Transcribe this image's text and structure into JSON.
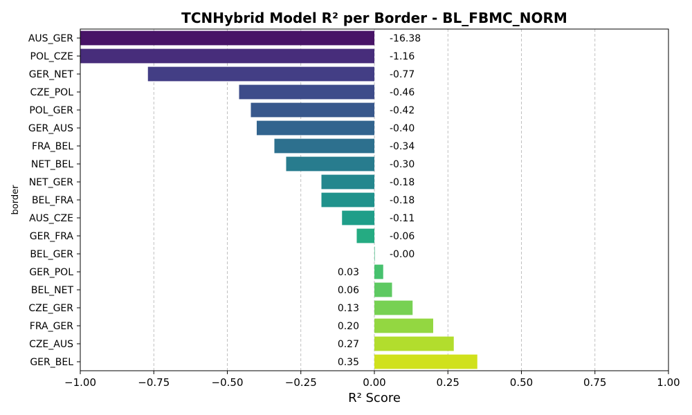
{
  "chart_data": {
    "type": "bar",
    "orientation": "horizontal",
    "title": "TCNHybrid Model R² per Border - BL_FBMC_NORM",
    "xlabel": "R² Score",
    "ylabel": "border",
    "xlim": [
      -1.0,
      1.0
    ],
    "xticks": [
      "−1.00",
      "−0.75",
      "−0.50",
      "−0.25",
      "0.00",
      "0.25",
      "0.50",
      "0.75",
      "1.00"
    ],
    "xtick_values": [
      -1.0,
      -0.75,
      -0.5,
      -0.25,
      0.0,
      0.25,
      0.5,
      0.75,
      1.0
    ],
    "grid": "vertical-dashed",
    "colormap": "viridis",
    "categories": [
      "AUS_GER",
      "POL_CZE",
      "GER_NET",
      "CZE_POL",
      "POL_GER",
      "GER_AUS",
      "FRA_BEL",
      "NET_BEL",
      "NET_GER",
      "BEL_FRA",
      "AUS_CZE",
      "GER_FRA",
      "BEL_GER",
      "GER_POL",
      "BEL_NET",
      "CZE_GER",
      "FRA_GER",
      "CZE_AUS",
      "GER_BEL"
    ],
    "values": [
      -16.38,
      -1.16,
      -0.77,
      -0.46,
      -0.42,
      -0.4,
      -0.34,
      -0.3,
      -0.18,
      -0.18,
      -0.11,
      -0.06,
      -0.0,
      0.03,
      0.06,
      0.13,
      0.2,
      0.27,
      0.35
    ],
    "value_labels": [
      "-16.38",
      "-1.16",
      "-0.77",
      "-0.46",
      "-0.42",
      "-0.40",
      "-0.34",
      "-0.30",
      "-0.18",
      "-0.18",
      "-0.11",
      "-0.06",
      "-0.00",
      "0.03",
      "0.06",
      "0.13",
      "0.20",
      "0.27",
      "0.35"
    ],
    "colors": [
      "#481467",
      "#472d7b",
      "#433e85",
      "#3e4c8a",
      "#38588c",
      "#32648e",
      "#2d708e",
      "#287c8e",
      "#24878e",
      "#20928c",
      "#1f9e89",
      "#25ab82",
      "#32b67a",
      "#47c16e",
      "#5ec962",
      "#77d153",
      "#93d741",
      "#b2dd2d",
      "#d0e11c"
    ]
  }
}
